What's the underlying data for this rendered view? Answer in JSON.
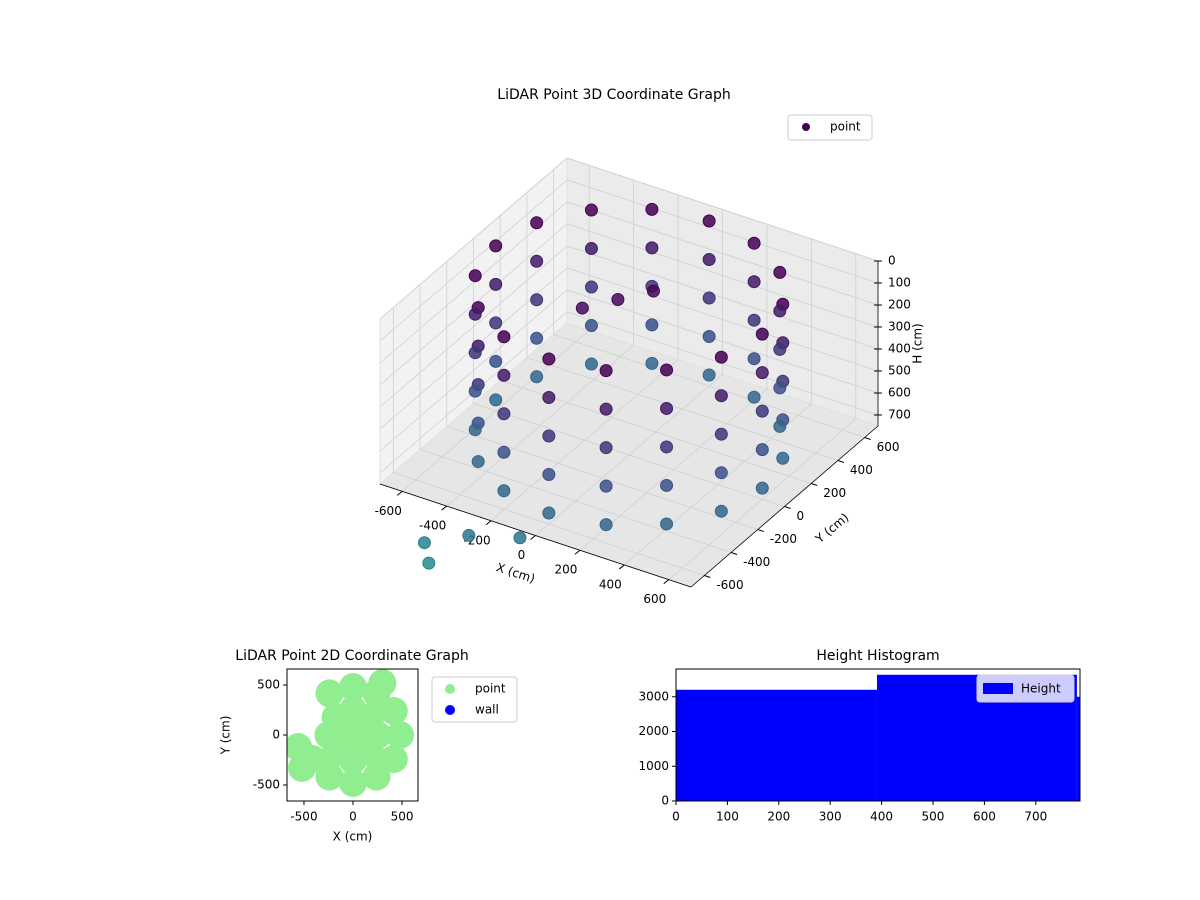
{
  "chart_data": [
    {
      "type": "scatter3d",
      "title": "LiDAR Point 3D Coordinate Graph",
      "xlabel": "X (cm)",
      "ylabel": "Y (cm)",
      "zlabel": "H (cm)",
      "xlim": [
        -700,
        700
      ],
      "ylim": [
        -700,
        700
      ],
      "zlim": [
        750,
        0
      ],
      "xticks": [
        -600,
        -400,
        -200,
        0,
        200,
        400,
        600
      ],
      "yticks": [
        -600,
        -400,
        -200,
        0,
        200,
        400,
        600
      ],
      "zticks": [
        0,
        100,
        200,
        300,
        400,
        500,
        600,
        700
      ],
      "colormap": "viridis",
      "legend": "upper right",
      "grid": true,
      "series": [
        {
          "name": "point",
          "color": "#440154",
          "x": [
            600,
            554,
            424,
            230,
            0,
            -230,
            -424,
            -554,
            -600,
            -554,
            -424,
            -230,
            0,
            230,
            424,
            554,
            600,
            554,
            424,
            230,
            0,
            -230,
            -424,
            -554,
            -600,
            -554,
            -424,
            -230,
            0,
            230,
            424,
            554,
            600,
            554,
            424,
            230,
            0,
            -230,
            -424,
            -554,
            -600,
            -554,
            -424,
            -230,
            0,
            230,
            424,
            554,
            600,
            554,
            424,
            230,
            0,
            -230,
            -424,
            -554,
            -600,
            -554,
            -424,
            -230,
            0,
            230,
            424,
            554,
            600,
            554,
            424,
            230,
            0,
            -230,
            -424,
            -554,
            -600,
            -554,
            -424,
            -230,
            0,
            230,
            424,
            554,
            -150,
            -50,
            50,
            -100,
            -300,
            -500,
            -450
          ],
          "y": [
            0,
            230,
            424,
            554,
            600,
            554,
            424,
            230,
            0,
            -230,
            -424,
            -554,
            -600,
            -554,
            -424,
            -230,
            0,
            230,
            424,
            554,
            600,
            554,
            424,
            230,
            0,
            -230,
            -424,
            -554,
            -600,
            -554,
            -424,
            -230,
            0,
            230,
            424,
            554,
            600,
            554,
            424,
            230,
            0,
            -230,
            -424,
            -554,
            -600,
            -554,
            -424,
            -230,
            0,
            230,
            424,
            554,
            600,
            554,
            424,
            230,
            0,
            -230,
            -424,
            -554,
            -600,
            -554,
            -424,
            -230,
            0,
            230,
            424,
            554,
            600,
            554,
            424,
            230,
            0,
            -230,
            -424,
            -554,
            -600,
            -554,
            -424,
            -230,
            -100,
            0,
            100,
            -650,
            -700,
            -700,
            -750
          ],
          "z": [
            0,
            0,
            0,
            0,
            0,
            0,
            0,
            0,
            0,
            0,
            0,
            0,
            0,
            0,
            0,
            0,
            175,
            175,
            175,
            175,
            175,
            175,
            175,
            175,
            175,
            175,
            175,
            175,
            175,
            175,
            175,
            175,
            350,
            350,
            350,
            350,
            350,
            350,
            350,
            350,
            350,
            350,
            350,
            350,
            350,
            350,
            350,
            350,
            525,
            525,
            525,
            525,
            525,
            525,
            525,
            525,
            525,
            525,
            525,
            525,
            525,
            525,
            525,
            525,
            700,
            700,
            700,
            700,
            700,
            700,
            700,
            700,
            700,
            700,
            700,
            700,
            700,
            700,
            700,
            700,
            80,
            60,
            40,
            820,
            850,
            950,
            1000
          ]
        }
      ]
    },
    {
      "type": "scatter",
      "title": "LiDAR Point 2D Coordinate Graph",
      "xlabel": "X (cm)",
      "ylabel": "Y (cm)",
      "xlim": [
        -673,
        663
      ],
      "ylim": [
        -660,
        660
      ],
      "xticks": [
        -500,
        0,
        500
      ],
      "yticks": [
        -500,
        0,
        500
      ],
      "legend": "outside right",
      "series": [
        {
          "name": "point",
          "color": "#90ee90",
          "x": [
            0,
            250,
            177,
            0,
            -177,
            -250,
            -177,
            0,
            177,
            480,
            416,
            240,
            0,
            -240,
            -416,
            -240,
            0,
            240,
            416,
            -520,
            300,
            -560
          ],
          "y": [
            0,
            0,
            177,
            250,
            177,
            0,
            -177,
            -250,
            -177,
            0,
            240,
            416,
            480,
            416,
            -240,
            -416,
            -480,
            -416,
            -240,
            -330,
            520,
            -120
          ]
        },
        {
          "name": "wall",
          "color": "#0000ff",
          "x": [],
          "y": []
        }
      ]
    },
    {
      "type": "histogram",
      "title": "Height Histogram",
      "xlim": [
        0,
        786
      ],
      "ylim": [
        0,
        3800
      ],
      "xticks": [
        0,
        100,
        200,
        300,
        400,
        500,
        600,
        700
      ],
      "yticks": [
        0,
        1000,
        2000,
        3000
      ],
      "legend": "upper right",
      "bins": [
        0,
        391,
        780,
        786
      ],
      "series": [
        {
          "name": "Height",
          "color": "#0000ff",
          "values": [
            3202,
            3634,
            3000
          ]
        }
      ]
    }
  ]
}
